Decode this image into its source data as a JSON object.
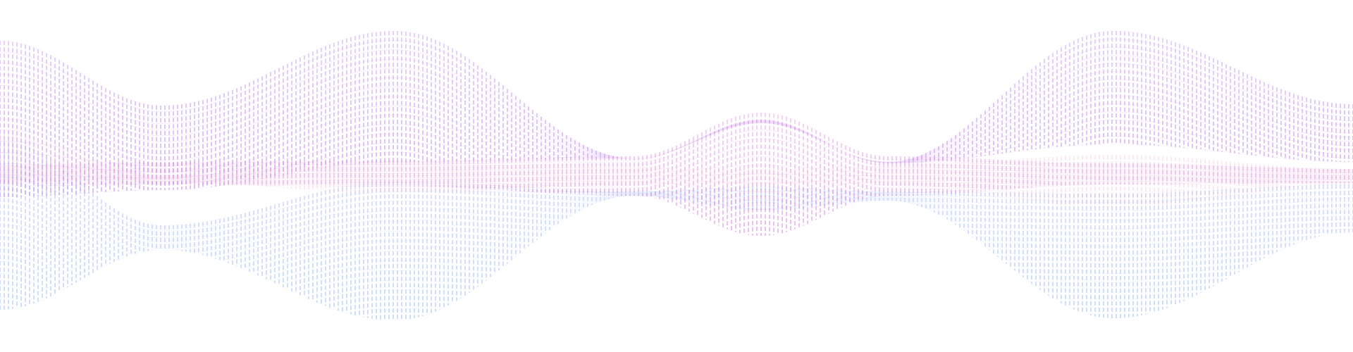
{
  "background_color": "#ffffff",
  "bands": [
    {
      "name": "upper-purple-ribbon",
      "color_start": "#c99af0",
      "color_end": "#b56ee3",
      "opacity": 0.55
    },
    {
      "name": "lower-blue-ribbon",
      "color_start": "#b9b6f7",
      "color_end": "#8fb6f5",
      "opacity": 0.55
    },
    {
      "name": "center-magenta-ribbon",
      "color_start": "#e9a9e8",
      "color_end": "#cf7fdc",
      "opacity": 0.6
    },
    {
      "name": "center-pink-ribbon",
      "color_start": "#f3c9df",
      "color_end": "#efc0d7",
      "opacity": 0.45
    }
  ]
}
